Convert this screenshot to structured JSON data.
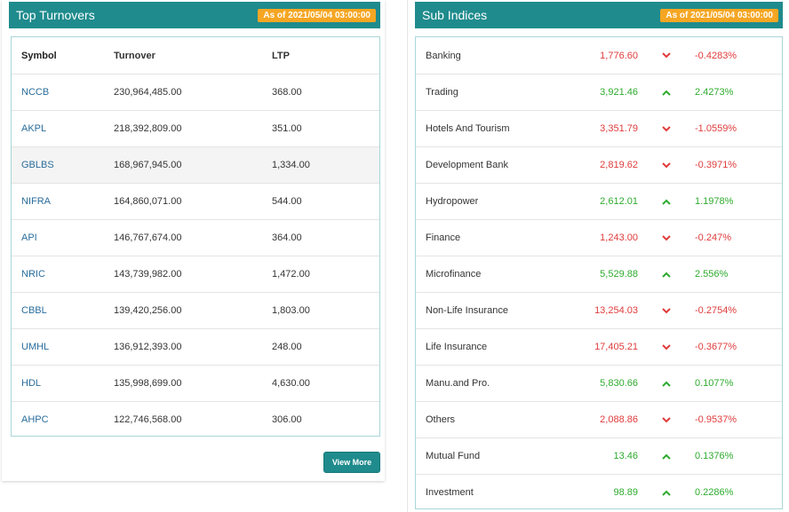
{
  "top_turnovers": {
    "title": "Top Turnovers",
    "as_of": "As of 2021/05/04 03:00:00",
    "columns": [
      "Symbol",
      "Turnover",
      "LTP"
    ],
    "rows": [
      {
        "symbol": "NCCB",
        "turnover": "230,964,485.00",
        "ltp": "368.00"
      },
      {
        "symbol": "AKPL",
        "turnover": "218,392,809.00",
        "ltp": "351.00"
      },
      {
        "symbol": "GBLBS",
        "turnover": "168,967,945.00",
        "ltp": "1,334.00"
      },
      {
        "symbol": "NIFRA",
        "turnover": "164,860,071.00",
        "ltp": "544.00"
      },
      {
        "symbol": "API",
        "turnover": "146,767,674.00",
        "ltp": "364.00"
      },
      {
        "symbol": "NRIC",
        "turnover": "143,739,982.00",
        "ltp": "1,472.00"
      },
      {
        "symbol": "CBBL",
        "turnover": "139,420,256.00",
        "ltp": "1,803.00"
      },
      {
        "symbol": "UMHL",
        "turnover": "136,912,393.00",
        "ltp": "248.00"
      },
      {
        "symbol": "HDL",
        "turnover": "135,998,699.00",
        "ltp": "4,630.00"
      },
      {
        "symbol": "AHPC",
        "turnover": "122,746,568.00",
        "ltp": "306.00"
      }
    ],
    "view_more_label": "View More"
  },
  "sub_indices": {
    "title": "Sub Indices",
    "as_of": "As of 2021/05/04 03:00:00",
    "rows": [
      {
        "name": "Banking",
        "value": "1,776.60",
        "change": "-0.4283%",
        "direction": "down"
      },
      {
        "name": "Trading",
        "value": "3,921.46",
        "change": "2.4273%",
        "direction": "up"
      },
      {
        "name": "Hotels And Tourism",
        "value": "3,351.79",
        "change": "-1.0559%",
        "direction": "down"
      },
      {
        "name": "Development Bank",
        "value": "2,819.62",
        "change": "-0.3971%",
        "direction": "down"
      },
      {
        "name": "Hydropower",
        "value": "2,612.01",
        "change": "1.1978%",
        "direction": "up"
      },
      {
        "name": "Finance",
        "value": "1,243.00",
        "change": "-0.247%",
        "direction": "down"
      },
      {
        "name": "Microfinance",
        "value": "5,529.88",
        "change": "2.556%",
        "direction": "up"
      },
      {
        "name": "Non-Life Insurance",
        "value": "13,254.03",
        "change": "-0.2754%",
        "direction": "down"
      },
      {
        "name": "Life Insurance",
        "value": "17,405.21",
        "change": "-0.3677%",
        "direction": "down"
      },
      {
        "name": "Manu.and Pro.",
        "value": "5,830.66",
        "change": "0.1077%",
        "direction": "up"
      },
      {
        "name": "Others",
        "value": "2,088.86",
        "change": "-0.9537%",
        "direction": "down"
      },
      {
        "name": "Mutual Fund",
        "value": "13.46",
        "change": "0.1376%",
        "direction": "up"
      },
      {
        "name": "Investment",
        "value": "98.89",
        "change": "0.2286%",
        "direction": "up"
      }
    ]
  },
  "colors": {
    "header_bg": "#1f8b8d",
    "badge_bg": "#f5a623",
    "up": "#2eab2e",
    "down": "#e03b3b",
    "link": "#2a6d9c"
  },
  "icons": {
    "up": "chevron-up-icon",
    "down": "chevron-down-icon"
  }
}
